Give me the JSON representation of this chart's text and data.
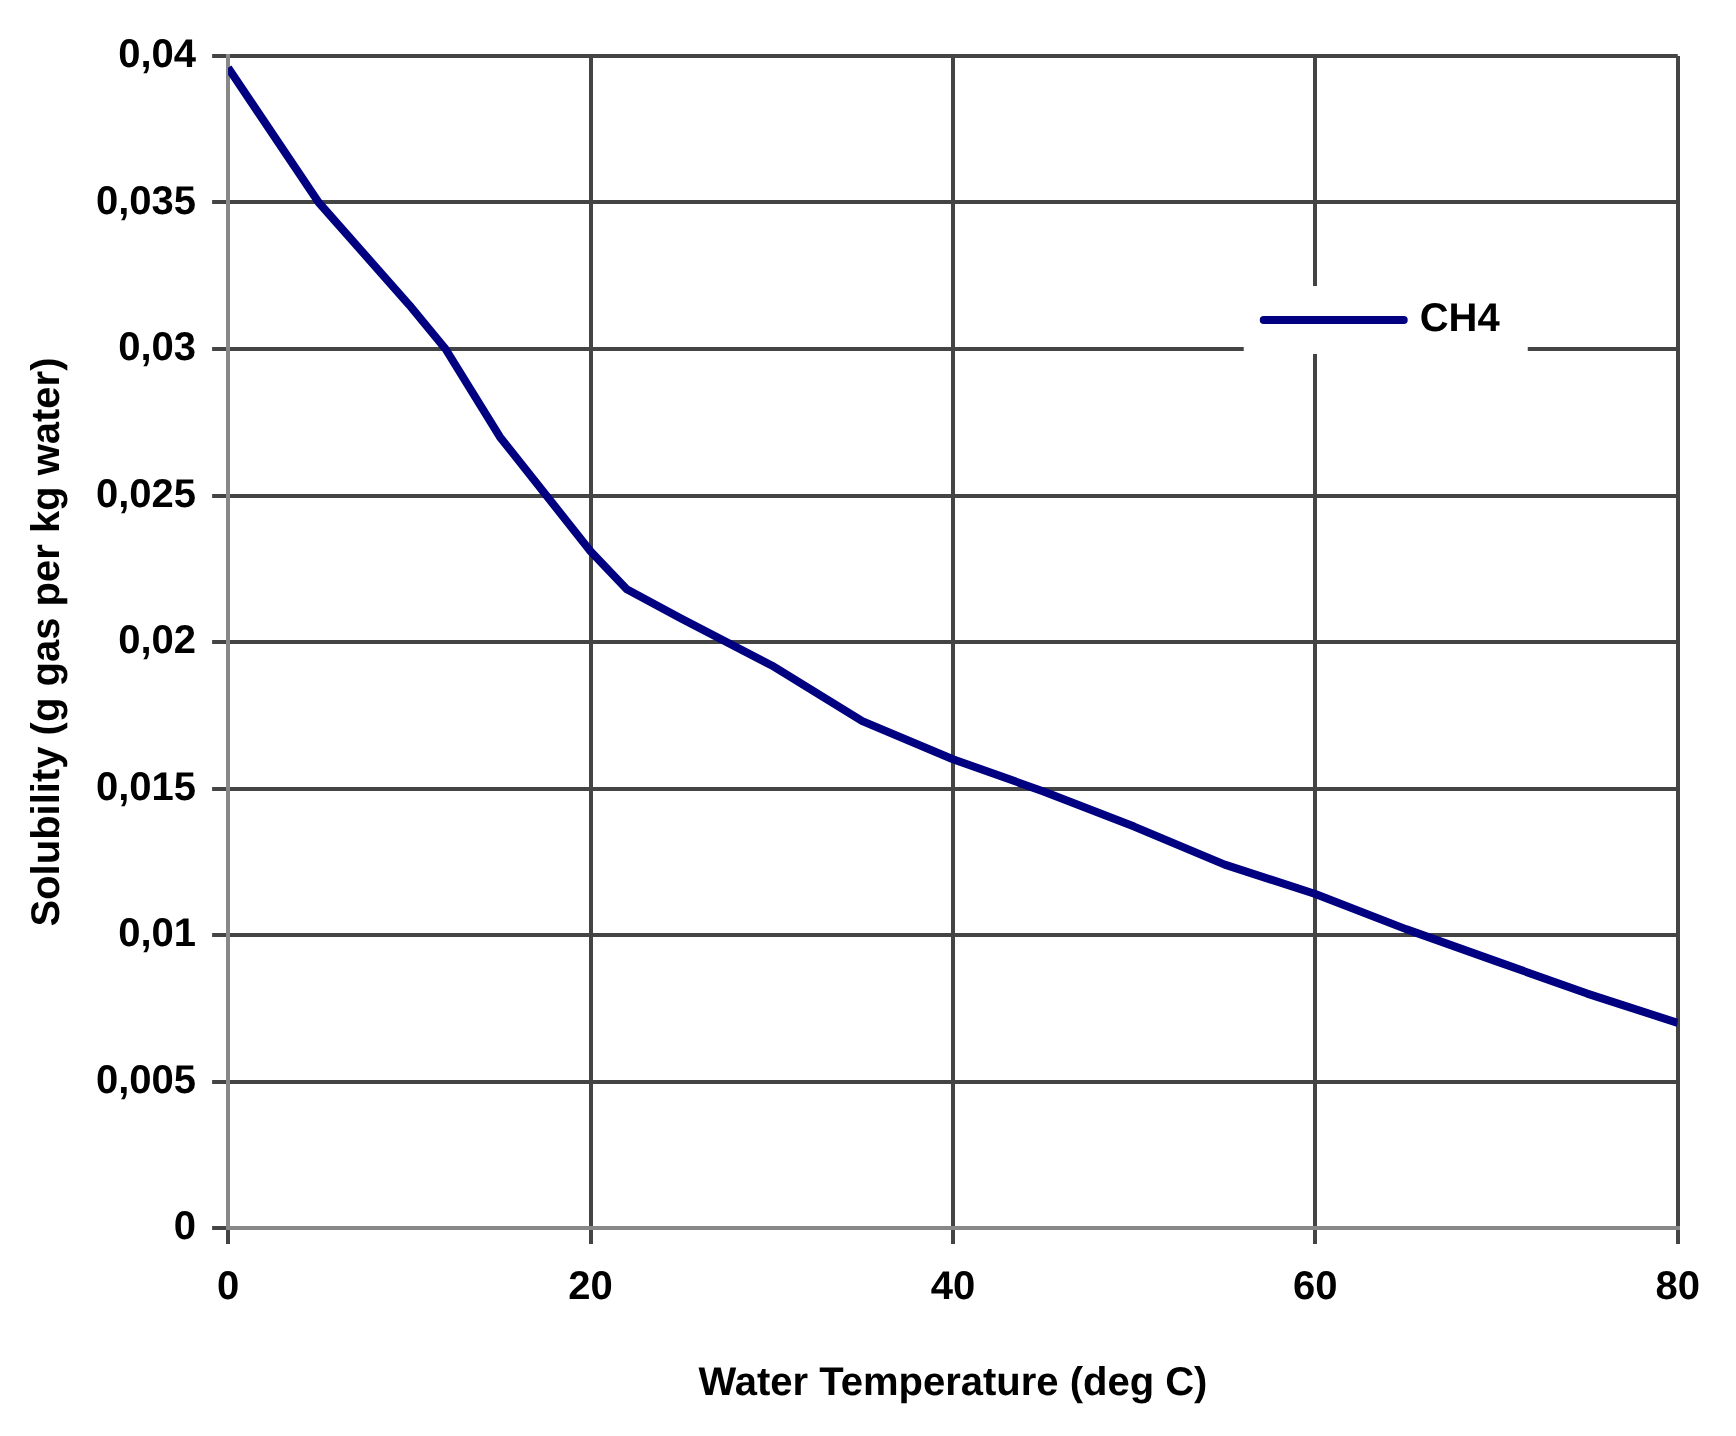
{
  "chart_data": {
    "type": "line",
    "xlabel": "Water Temperature (deg C)",
    "ylabel": "Solubility (g gas per kg water)",
    "series": [
      {
        "name": "CH4",
        "color": "#000080",
        "x": [
          0,
          5,
          10,
          12,
          15,
          20,
          22,
          25,
          30,
          35,
          40,
          45,
          50,
          55,
          60,
          65,
          70,
          75,
          80
        ],
        "values": [
          0.0396,
          0.035,
          0.0315,
          0.03,
          0.027,
          0.0231,
          0.0218,
          0.0208,
          0.0192,
          0.0173,
          0.016,
          0.0149,
          0.0137,
          0.0124,
          0.0114,
          0.0102,
          0.0091,
          0.008,
          0.007
        ]
      }
    ],
    "xlim": [
      0,
      80
    ],
    "xticks": [
      0,
      20,
      40,
      60,
      80
    ],
    "ylim": [
      0,
      0.04
    ],
    "yticks": [
      {
        "value": 0,
        "label": "0"
      },
      {
        "value": 0.005,
        "label": "0,005"
      },
      {
        "value": 0.01,
        "label": "0,01"
      },
      {
        "value": 0.015,
        "label": "0,015"
      },
      {
        "value": 0.02,
        "label": "0,02"
      },
      {
        "value": 0.025,
        "label": "0,025"
      },
      {
        "value": 0.03,
        "label": "0,03"
      },
      {
        "value": 0.035,
        "label": "0,035"
      },
      {
        "value": 0.04,
        "label": "0,04"
      }
    ],
    "grid": true,
    "legend": "top right",
    "marker": "none",
    "line_style": "solid"
  }
}
